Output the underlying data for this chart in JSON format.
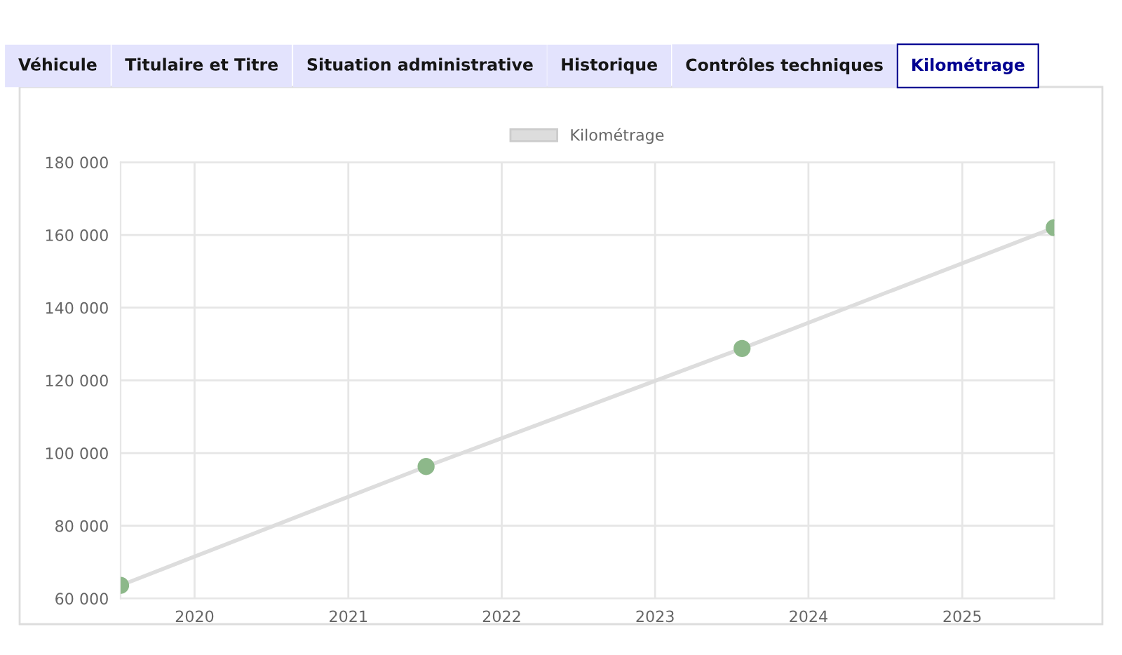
{
  "chart_data": {
    "type": "line",
    "annotations": [
      "Véhicule",
      "Titulaire et Titre",
      "Situation administrative",
      "Historique",
      "Contrôles techniques",
      "Kilométrage"
    ],
    "x": [
      "2019-07-09",
      "2021-07-05",
      "2023-07-27",
      "2025-08-08"
    ],
    "series": [
      {
        "name": "Kilométrage",
        "color": "#dddddd",
        "colors": [
          "#8db88a",
          "#8db88a",
          "#8db88a",
          "#8db88a"
        ],
        "values": [
          63600,
          96300,
          128800,
          162000
        ]
      }
    ],
    "xlim": [
      "2019-07-09",
      "2025-08-08"
    ],
    "xticks": [
      "2020",
      "2021",
      "2022",
      "2023",
      "2024",
      "2025"
    ],
    "ylim": [
      60000,
      180000
    ],
    "yticks": [
      {
        "value": 60000,
        "label": "60 000"
      },
      {
        "value": 80000,
        "label": "80 000"
      },
      {
        "value": 100000,
        "label": "100 000"
      },
      {
        "value": 120000,
        "label": "120 000"
      },
      {
        "value": 140000,
        "label": "140 000"
      },
      {
        "value": 160000,
        "label": "160 000"
      },
      {
        "value": 180000,
        "label": "180 000"
      }
    ],
    "grid": true,
    "legend": "top",
    "marker": "circle",
    "line_style": "solid"
  }
}
